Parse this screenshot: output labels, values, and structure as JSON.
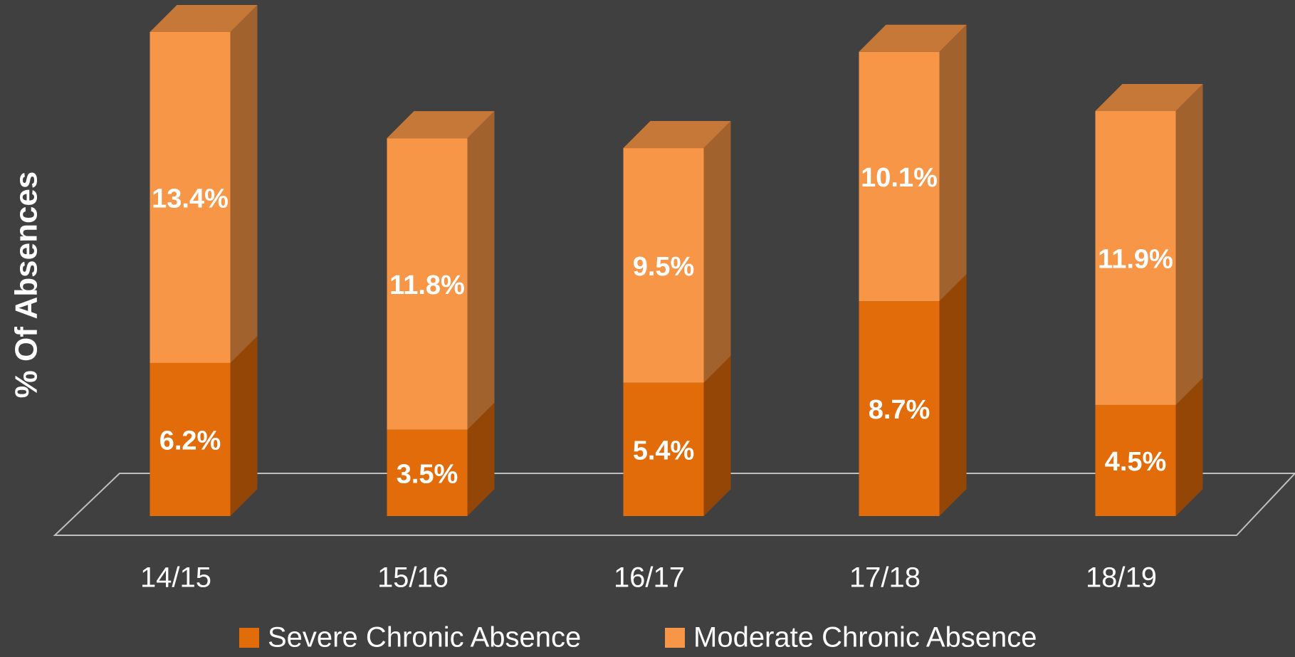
{
  "chart_data": {
    "type": "bar3d_stacked",
    "ylabel": "% Of Absences",
    "categories": [
      "14/15",
      "15/16",
      "16/17",
      "17/18",
      "18/19"
    ],
    "series": [
      {
        "name": "Severe Chronic Absence",
        "color": "#e36c0a",
        "values": [
          6.2,
          3.5,
          5.4,
          8.7,
          4.5
        ],
        "value_labels": [
          "6.2%",
          "3.5%",
          "5.4%",
          "8.7%",
          "4.5%"
        ]
      },
      {
        "name": "Moderate Chronic Absence",
        "color": "#f79646",
        "values": [
          13.4,
          11.8,
          9.5,
          10.1,
          11.9
        ],
        "value_labels": [
          "13.4%",
          "11.8%",
          "9.5%",
          "10.1%",
          "11.9%"
        ]
      }
    ]
  }
}
